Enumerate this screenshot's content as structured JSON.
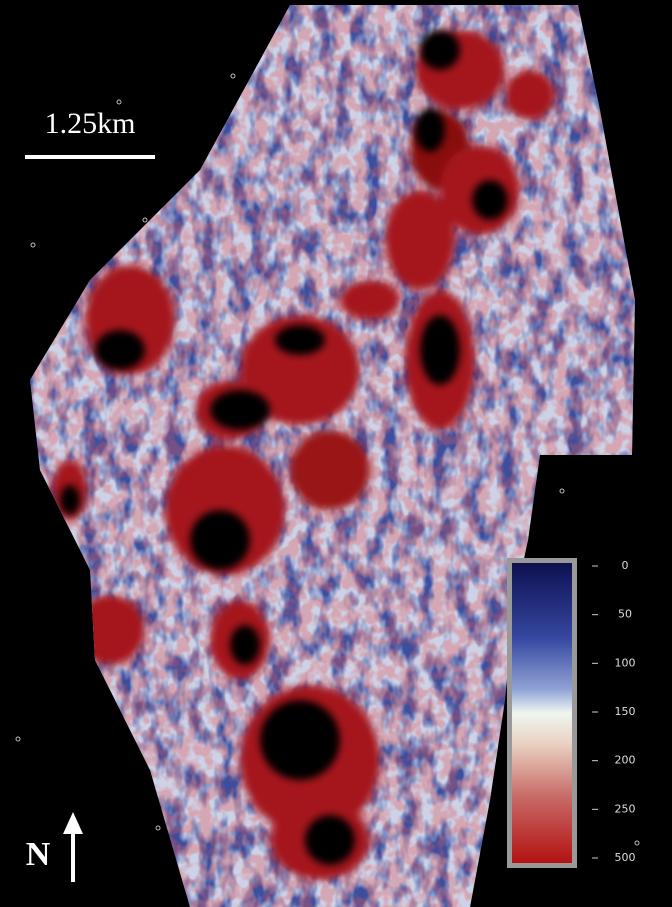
{
  "scale_bar": {
    "label": "1.25km"
  },
  "north_arrow": {
    "label": "N"
  },
  "colorbar": {
    "ticks": [
      0,
      50,
      100,
      150,
      200,
      250,
      500
    ]
  }
}
